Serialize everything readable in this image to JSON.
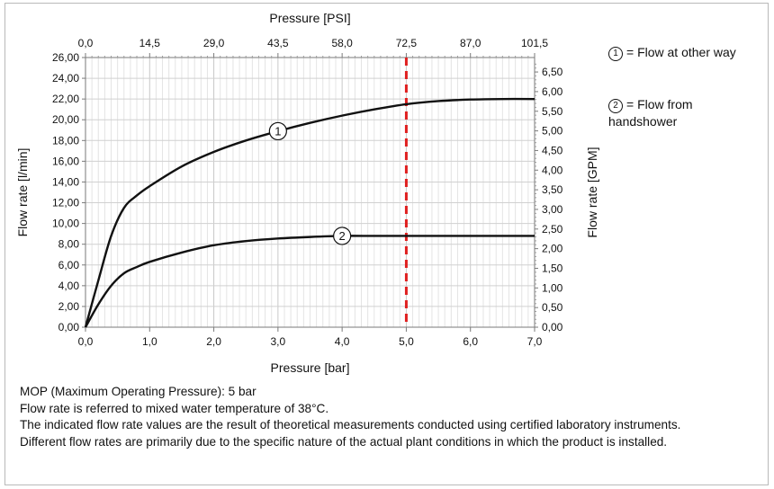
{
  "chart_data": {
    "type": "line",
    "xlabel_bottom": "Pressure [bar]",
    "xlabel_top": "Pressure [PSI]",
    "ylabel_left": "Flow rate [l/min]",
    "ylabel_right": "Flow rate [GPM]",
    "x_ticks": [
      "0,0",
      "1,0",
      "2,0",
      "3,0",
      "4,0",
      "5,0",
      "6,0",
      "7,0"
    ],
    "x_top_ticks": [
      "0,0",
      "14,5",
      "29,0",
      "43,5",
      "58,0",
      "72,5",
      "87,0",
      "101,5"
    ],
    "y_ticks": [
      "0,00",
      "2,00",
      "4,00",
      "6,00",
      "8,00",
      "10,00",
      "12,00",
      "14,00",
      "16,00",
      "18,00",
      "20,00",
      "22,00",
      "24,00",
      "26,00"
    ],
    "y_right_ticks": [
      "0,00",
      "0,50",
      "1,00",
      "1,50",
      "2,00",
      "2,50",
      "3,00",
      "3,50",
      "4,00",
      "4,50",
      "5,00",
      "5,50",
      "6,00",
      "6,50"
    ],
    "xlim": [
      0,
      7
    ],
    "ylim": [
      0,
      26
    ],
    "y_right_lim": [
      0,
      6.868
    ],
    "grid": true,
    "mop_line": {
      "x": 5,
      "color": "#e02020"
    },
    "series": [
      {
        "marker_label": "1",
        "x": [
          0,
          0.2,
          0.4,
          0.6,
          0.8,
          1.0,
          1.5,
          2.0,
          2.5,
          3.0,
          3.5,
          4.0,
          4.5,
          5.0,
          5.5,
          6.0,
          6.5,
          7.0
        ],
        "y": [
          0,
          4.5,
          8.8,
          11.5,
          12.7,
          13.6,
          15.5,
          16.9,
          18.0,
          18.9,
          19.7,
          20.4,
          21.0,
          21.5,
          21.8,
          21.95,
          22.0,
          22.0
        ],
        "label_at_x": 3.0
      },
      {
        "marker_label": "2",
        "x": [
          0,
          0.2,
          0.4,
          0.6,
          0.8,
          1.0,
          1.5,
          2.0,
          2.5,
          3.0,
          3.5,
          4.0,
          4.5,
          5.0,
          5.5,
          6.0,
          6.5,
          7.0
        ],
        "y": [
          0,
          2.2,
          4.0,
          5.2,
          5.8,
          6.3,
          7.2,
          7.9,
          8.3,
          8.55,
          8.7,
          8.8,
          8.8,
          8.8,
          8.8,
          8.8,
          8.8,
          8.8
        ],
        "label_at_x": 4.0
      }
    ]
  },
  "legend": [
    {
      "mark": "1",
      "text": "= Flow at other way"
    },
    {
      "mark": "2",
      "text": "= Flow from handshower"
    }
  ],
  "notes": [
    "MOP (Maximum Operating Pressure): 5 bar",
    "Flow rate is referred to mixed water temperature of 38°C.",
    "The indicated flow rate values are the result of theoretical measurements conducted using certified laboratory instruments.",
    "Different flow rates are primarily due to the specific nature of the actual plant conditions in which the product is installed."
  ]
}
